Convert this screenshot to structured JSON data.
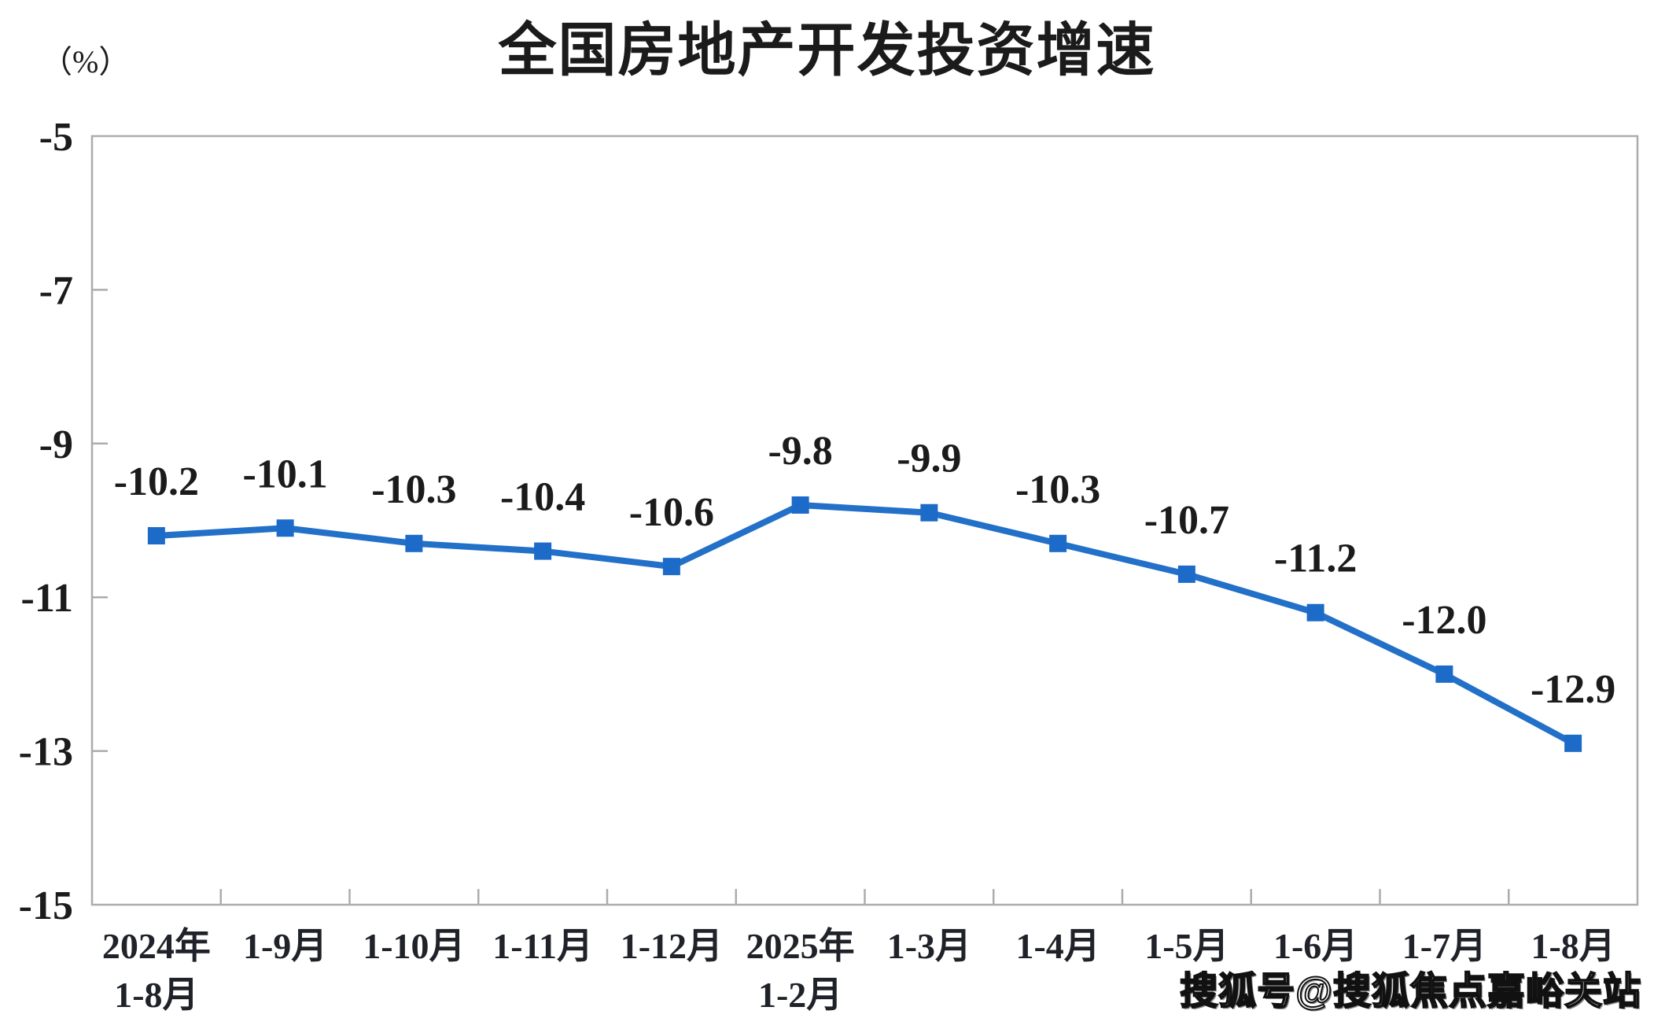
{
  "title": "全国房地产开发投资增速",
  "y_axis_unit": "（%）",
  "watermark": "搜狐号@搜狐焦点嘉峪关站",
  "colors": {
    "line": "#2270C8",
    "marker": "#1D6BC8",
    "axis": "#ACACAC",
    "text": "#1B1B1B"
  },
  "chart_data": {
    "type": "line",
    "title": "全国房地产开发投资增速",
    "ylabel": "（%）",
    "categories": [
      "2024年\n1-8月",
      "1-9月",
      "1-10月",
      "1-11月",
      "1-12月",
      "2025年\n1-2月",
      "1-3月",
      "1-4月",
      "1-5月",
      "1-6月",
      "1-7月",
      "1-8月"
    ],
    "values": [
      -10.2,
      -10.1,
      -10.3,
      -10.4,
      -10.6,
      -9.8,
      -9.9,
      -10.3,
      -10.7,
      -11.2,
      -12.0,
      -12.9
    ],
    "ylim": [
      -15,
      -5
    ],
    "yticks": [
      -5,
      -7,
      -9,
      -11,
      -13,
      -15
    ],
    "grid": false,
    "legend_position": "none",
    "marker_shape": "square",
    "data_label_position": "above",
    "data_label_format": "one-decimal"
  }
}
